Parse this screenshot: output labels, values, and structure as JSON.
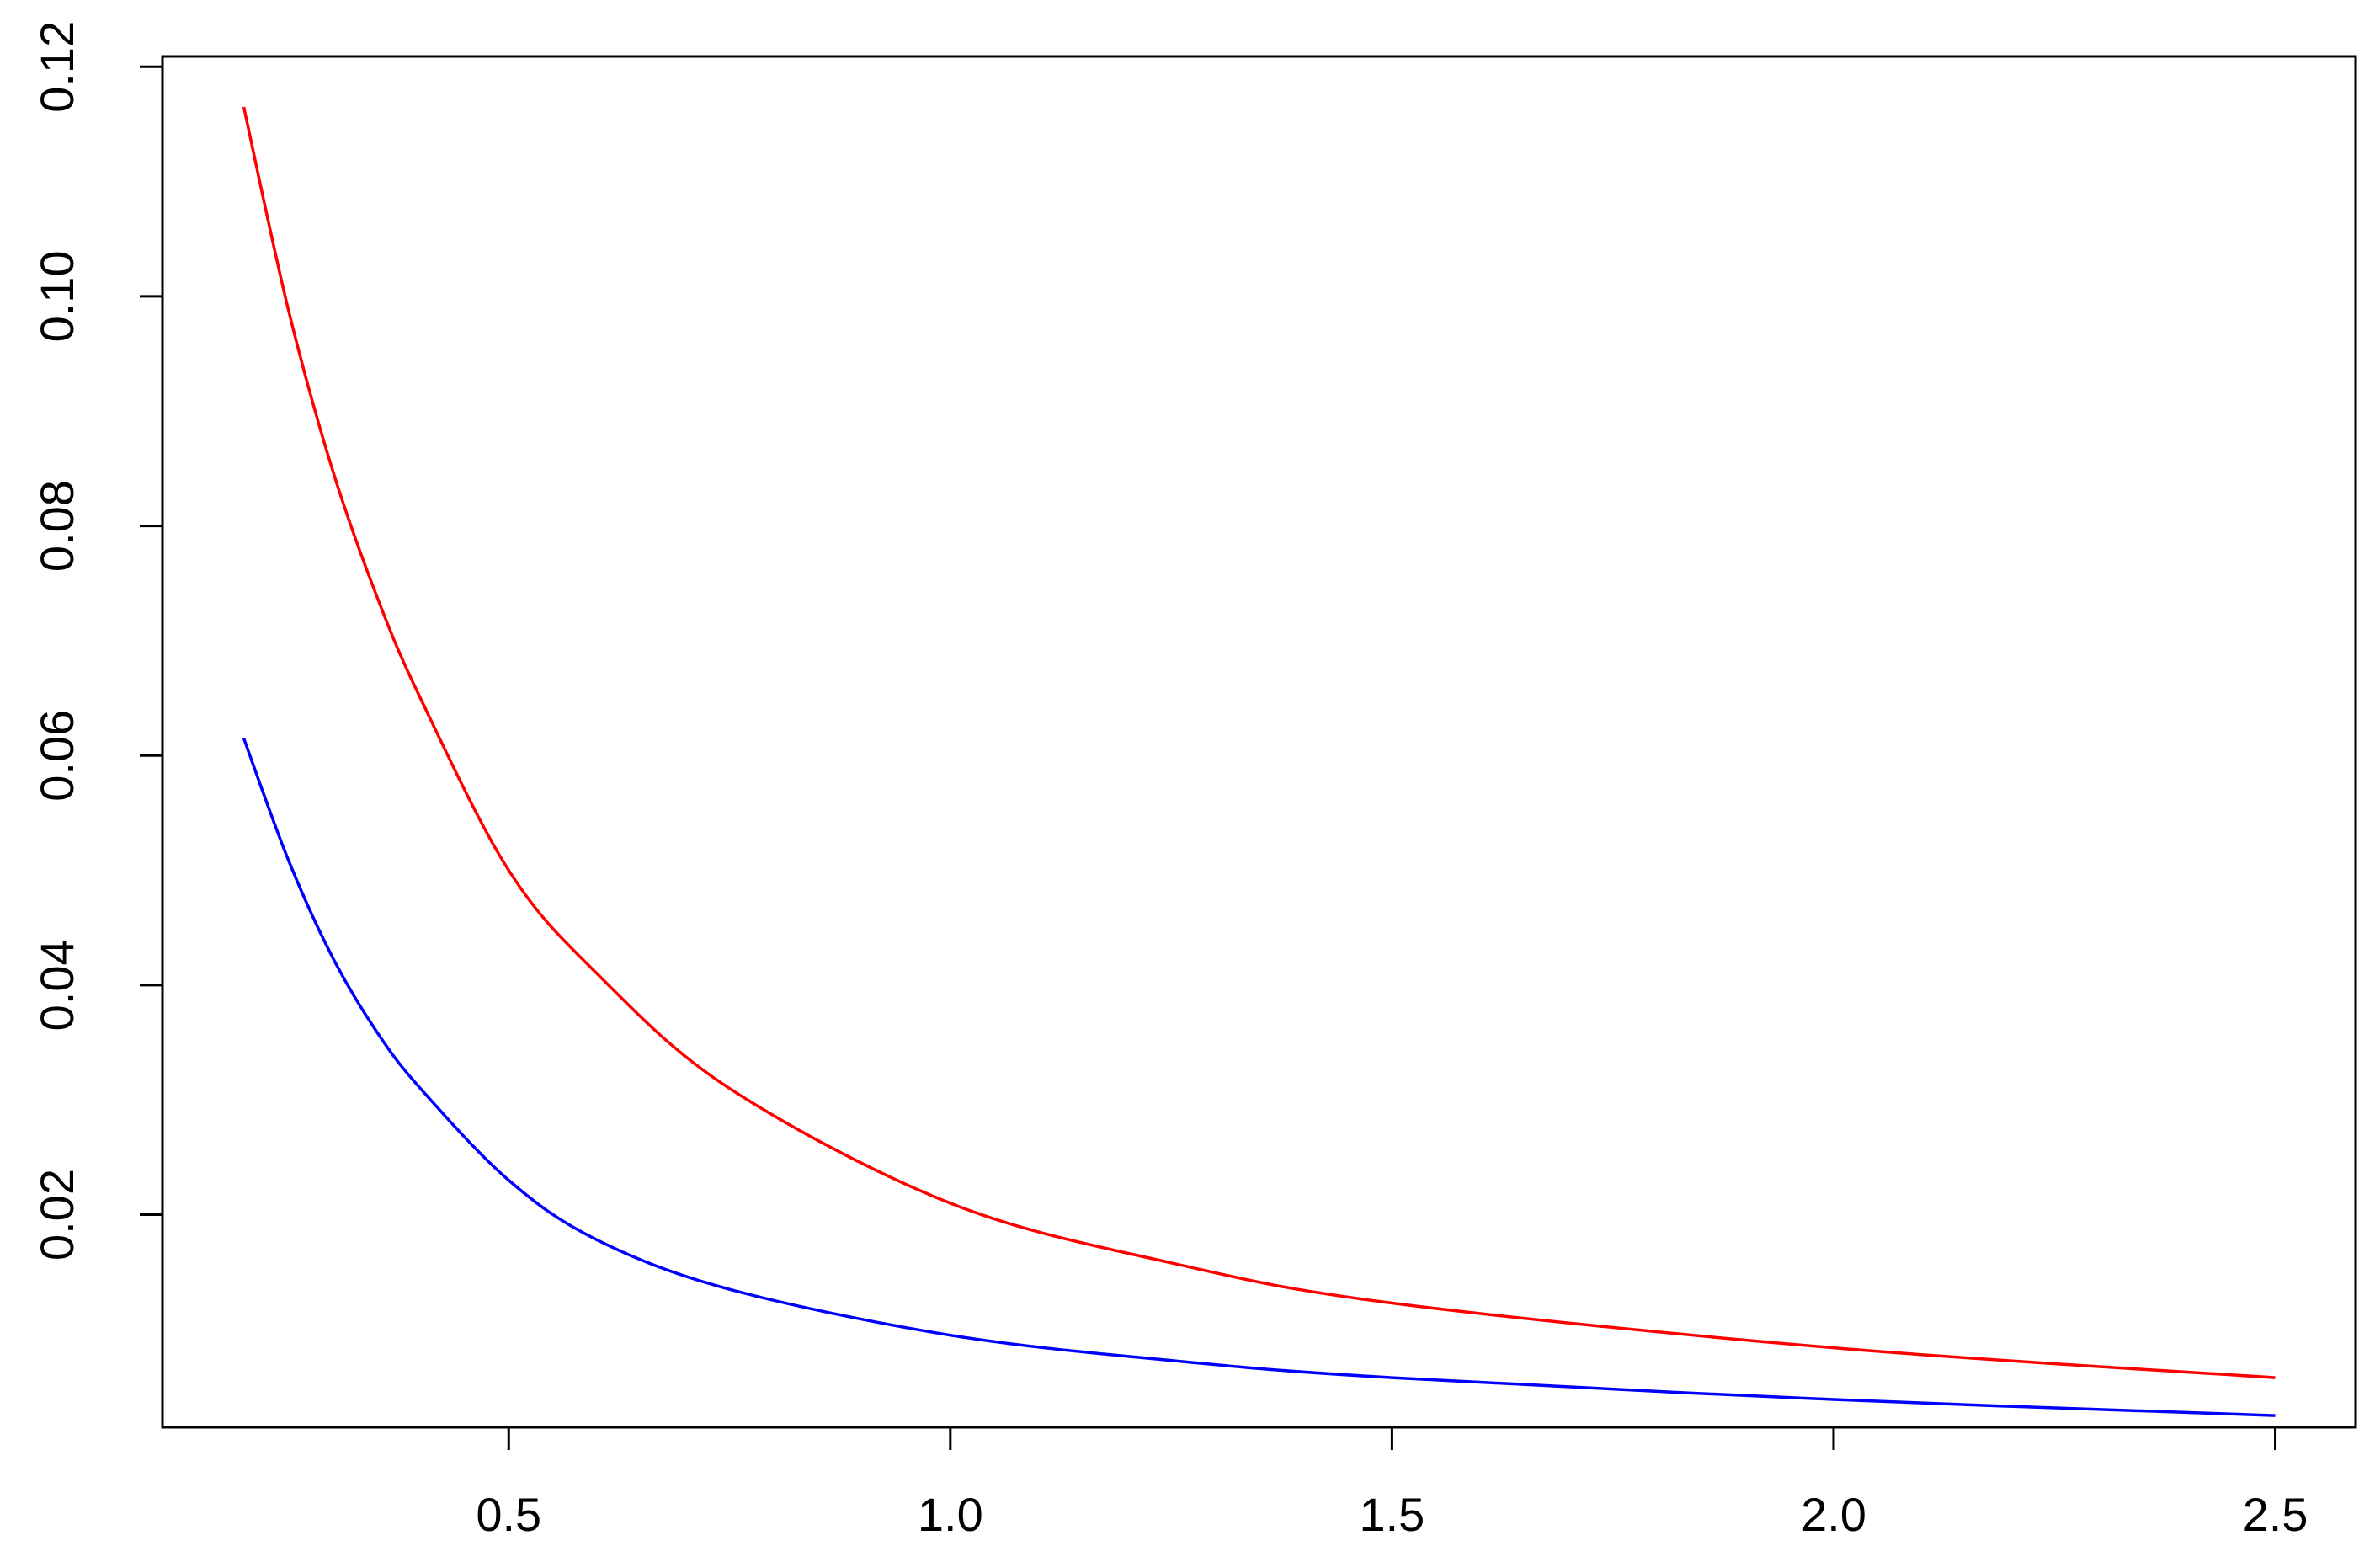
{
  "chart_data": {
    "type": "line",
    "x": [
      0.2,
      0.25,
      0.3,
      0.35,
      0.4,
      0.5,
      0.6,
      0.75,
      1.0,
      1.25,
      1.5,
      2.0,
      2.5
    ],
    "series": [
      {
        "color": "#ff0000",
        "values": [
          0.1165,
          0.099,
          0.085,
          0.074,
          0.065,
          0.05,
          0.041,
          0.031,
          0.021,
          0.0158,
          0.0123,
          0.0084,
          0.0058
        ]
      },
      {
        "color": "#0000ff",
        "values": [
          0.0615,
          0.051,
          0.0425,
          0.036,
          0.031,
          0.023,
          0.0178,
          0.0135,
          0.0095,
          0.0073,
          0.0058,
          0.0039,
          0.0025
        ]
      }
    ],
    "xlim": [
      0.108,
      2.591
    ],
    "ylim": [
      0.00148,
      0.1209
    ],
    "xticks": [
      0.5,
      {
        "value": 1.0,
        "label": "1.0"
      },
      1.5,
      {
        "value": 2.0,
        "label": "2.0"
      },
      2.5
    ],
    "yticks": [
      0.02,
      0.04,
      0.06,
      0.08,
      {
        "value": 0.1,
        "label": "0.10"
      },
      0.12
    ],
    "grid": false
  }
}
